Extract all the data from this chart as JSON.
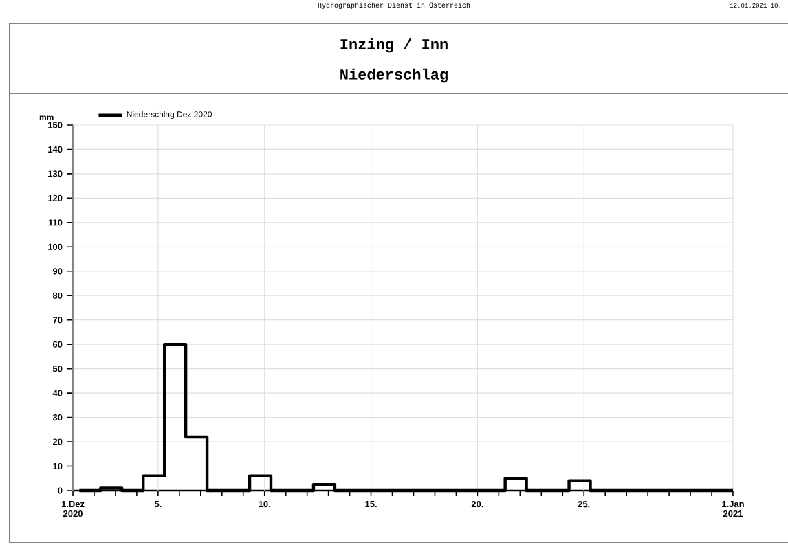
{
  "chart_data": {
    "type": "step",
    "title": "Inzing / Inn",
    "subtitle": "Niederschlag",
    "ylabel": "mm",
    "annotations": [
      "Hydrographischer Dienst in Österreich",
      "12.01.2021 10."
    ],
    "x": [
      1.3,
      2.3,
      3.3,
      4.3,
      5.3,
      6.3,
      7.3,
      8.3,
      9.3,
      10.3,
      11.3,
      12.3,
      13.3,
      14.3,
      15.3,
      16.3,
      17.3,
      18.3,
      19.3,
      20.3,
      21.3,
      22.3,
      23.3,
      24.3,
      25.3,
      26.3,
      27.3,
      28.3,
      29.3,
      30.3,
      31.3,
      32
    ],
    "series": [
      {
        "name": "Niederschlag Dez 2020",
        "color": "#000000",
        "values": [
          0,
          1,
          0,
          6,
          60,
          22,
          0,
          0,
          6,
          0,
          0,
          2.5,
          0,
          0,
          0,
          0,
          0,
          0,
          0,
          0,
          5,
          0,
          0,
          4,
          0,
          0,
          0,
          0,
          0,
          0,
          0,
          0
        ]
      }
    ],
    "xlim": [
      1,
      32
    ],
    "xticks": [
      {
        "value": 1,
        "label": "1.Dez 2020"
      },
      {
        "value": 2,
        "label": null
      },
      {
        "value": 3,
        "label": null
      },
      {
        "value": 4,
        "label": null
      },
      {
        "value": 5,
        "label": "5."
      },
      {
        "value": 6,
        "label": null
      },
      {
        "value": 7,
        "label": null
      },
      {
        "value": 8,
        "label": null
      },
      {
        "value": 9,
        "label": null
      },
      {
        "value": 10,
        "label": "10."
      },
      {
        "value": 11,
        "label": null
      },
      {
        "value": 12,
        "label": null
      },
      {
        "value": 13,
        "label": null
      },
      {
        "value": 14,
        "label": null
      },
      {
        "value": 15,
        "label": "15."
      },
      {
        "value": 16,
        "label": null
      },
      {
        "value": 17,
        "label": null
      },
      {
        "value": 18,
        "label": null
      },
      {
        "value": 19,
        "label": null
      },
      {
        "value": 20,
        "label": "20."
      },
      {
        "value": 21,
        "label": null
      },
      {
        "value": 22,
        "label": null
      },
      {
        "value": 23,
        "label": null
      },
      {
        "value": 24,
        "label": null
      },
      {
        "value": 25,
        "label": "25."
      },
      {
        "value": 26,
        "label": null
      },
      {
        "value": 27,
        "label": null
      },
      {
        "value": 28,
        "label": null
      },
      {
        "value": 29,
        "label": null
      },
      {
        "value": 30,
        "label": null
      },
      {
        "value": 31,
        "label": null
      },
      {
        "value": 32,
        "label": "1.Jan 2021"
      }
    ],
    "ylim": [
      0,
      150
    ],
    "yticks": [
      0,
      10,
      20,
      30,
      40,
      50,
      60,
      70,
      80,
      90,
      100,
      110,
      120,
      130,
      140,
      150
    ],
    "grid": true,
    "legend": "top left",
    "marker": "none",
    "line_style": "solid"
  }
}
